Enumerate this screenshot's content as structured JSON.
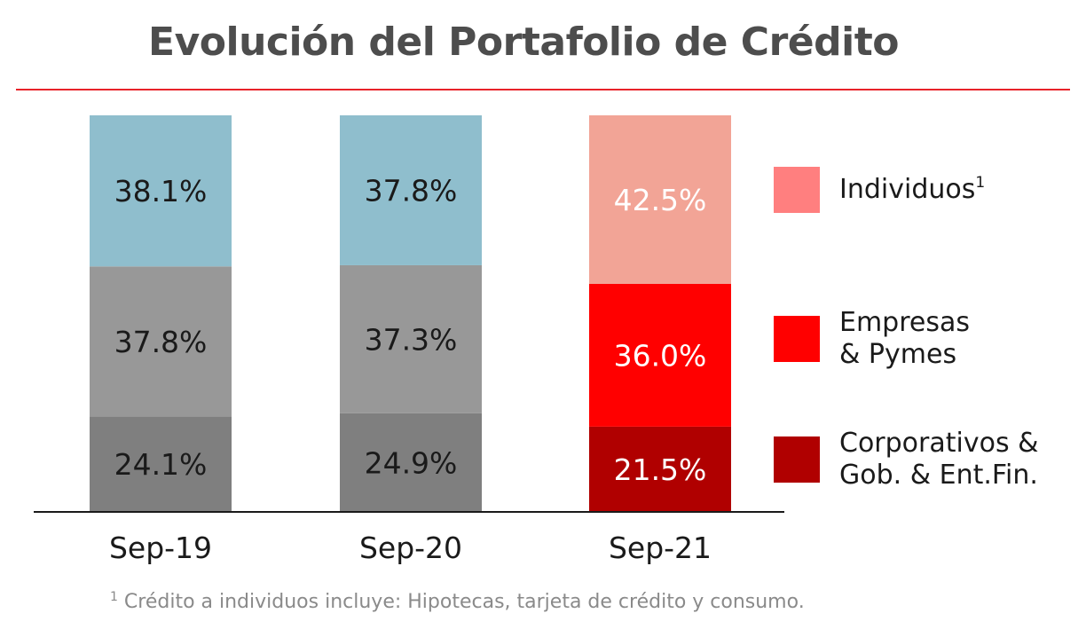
{
  "chart_data": {
    "type": "bar",
    "stacked": true,
    "normalized_percent": true,
    "title": "Evolución del Portafolio de Crédito",
    "categories": [
      "Sep-19",
      "Sep-20",
      "Sep-21"
    ],
    "series": [
      {
        "name": "Corporativos & Gob. & Ent.Fin.",
        "values": [
          24.1,
          24.9,
          21.5
        ]
      },
      {
        "name": "Empresas & Pymes",
        "values": [
          37.8,
          37.3,
          36.0
        ]
      },
      {
        "name": "Individuos",
        "values": [
          38.1,
          37.8,
          42.5
        ]
      }
    ],
    "value_labels": [
      [
        "24.1%",
        "37.8%",
        "38.1%"
      ],
      [
        "24.9%",
        "37.3%",
        "37.8%"
      ],
      [
        "21.5%",
        "36.0%",
        "42.5%"
      ]
    ],
    "ylim": [
      0,
      100
    ],
    "grid": false,
    "legend_position": "right"
  },
  "colors": {
    "highlight_column": "Sep-21",
    "muted": [
      "#7f7f7f",
      "#989898",
      "#8fbecd"
    ],
    "highlight": [
      "#b00000",
      "#ff0000",
      "#f2a496"
    ],
    "label_dark": "#1a1a1a",
    "label_light": "#ffffff",
    "accent_rule": "#e8232a"
  },
  "legend": [
    {
      "label": "Individuos",
      "sup": "1",
      "color": "#ff7f7f"
    },
    {
      "label": "Empresas\n& Pymes",
      "sup": "",
      "color": "#ff0000"
    },
    {
      "label": "Corporativos &\nGob. & Ent.Fin.",
      "sup": "",
      "color": "#b00000"
    }
  ],
  "footnote": {
    "sup": "1",
    "text": " Crédito a individuos incluye: Hipotecas, tarjeta de crédito y consumo."
  }
}
